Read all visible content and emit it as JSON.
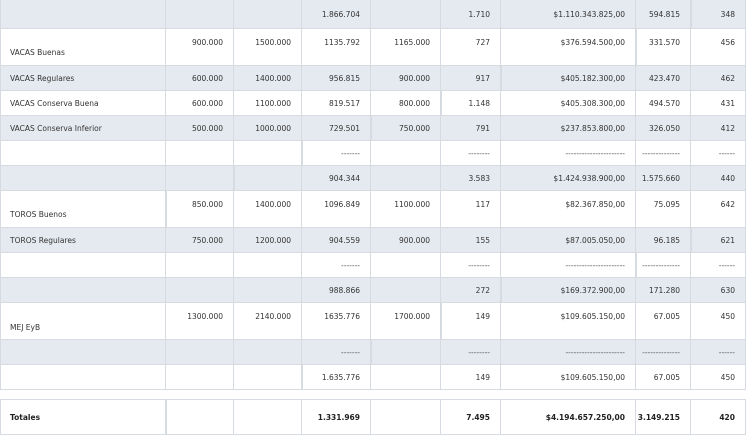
{
  "rows": [
    {
      "shade": true,
      "cells": [
        "",
        "",
        "",
        "1.866.704",
        "",
        "1.710",
        "$1.110.343.825,00",
        "594.815",
        "348"
      ]
    },
    {
      "shade": false,
      "cells": [
        "VACAS Buenas",
        "900.000",
        "1500.000",
        "1135.792",
        "1165.000",
        "727",
        "$376.594.500,00",
        "331.570",
        "456"
      ]
    },
    {
      "shade": true,
      "cells": [
        "VACAS Regulares",
        "600.000",
        "1400.000",
        "956.815",
        "900.000",
        "917",
        "$405.182.300,00",
        "423.470",
        "462"
      ]
    },
    {
      "shade": false,
      "cells": [
        "VACAS Conserva Buena",
        "600.000",
        "1100.000",
        "819.517",
        "800.000",
        "1.148",
        "$405.308.300,00",
        "494.570",
        "431"
      ]
    },
    {
      "shade": true,
      "cells": [
        "VACAS Conserva Inferior",
        "500.000",
        "1000.000",
        "729.501",
        "750.000",
        "791",
        "$237.853.800,00",
        "326.050",
        "412"
      ]
    },
    {
      "shade": false,
      "cells": [
        "",
        "",
        "",
        "-------",
        "",
        "--------",
        "----------------------",
        "--------------",
        "------"
      ]
    },
    {
      "shade": true,
      "cells": [
        "",
        "",
        "",
        "904.344",
        "",
        "3.583",
        "$1.424.938.900,00",
        "1.575.660",
        "440"
      ]
    },
    {
      "shade": false,
      "cells": [
        "TOROS Buenos",
        "850.000",
        "1400.000",
        "1096.849",
        "1100.000",
        "117",
        "$82.367.850,00",
        "75.095",
        "642"
      ]
    },
    {
      "shade": true,
      "cells": [
        "TOROS Regulares",
        "750.000",
        "1200.000",
        "904.559",
        "900.000",
        "155",
        "$87.005.050,00",
        "96.185",
        "621"
      ]
    },
    {
      "shade": false,
      "cells": [
        "",
        "",
        "",
        "-------",
        "",
        "--------",
        "----------------------",
        "--------------",
        "------"
      ]
    },
    {
      "shade": true,
      "cells": [
        "",
        "",
        "",
        "988.866",
        "",
        "272",
        "$169.372.900,00",
        "171.280",
        "630"
      ]
    },
    {
      "shade": false,
      "cells": [
        "MEJ EyB",
        "1300.000",
        "2140.000",
        "1635.776",
        "1700.000",
        "149",
        "$109.605.150,00",
        "67.005",
        "450"
      ]
    },
    {
      "shade": true,
      "cells": [
        "",
        "",
        "",
        "-------",
        "",
        "--------",
        "----------------------",
        "--------------",
        "------"
      ]
    },
    {
      "shade": false,
      "cells": [
        "",
        "",
        "",
        "1.635.776",
        "",
        "149",
        "$109.605.150,00",
        "67.005",
        "450"
      ]
    },
    {
      "shade": false,
      "cells": [
        "Totales",
        "",
        "",
        "1.331.969",
        "",
        "7.495",
        "$4.194.657.250,00",
        "3.149.215",
        "420"
      ]
    }
  ]
}
